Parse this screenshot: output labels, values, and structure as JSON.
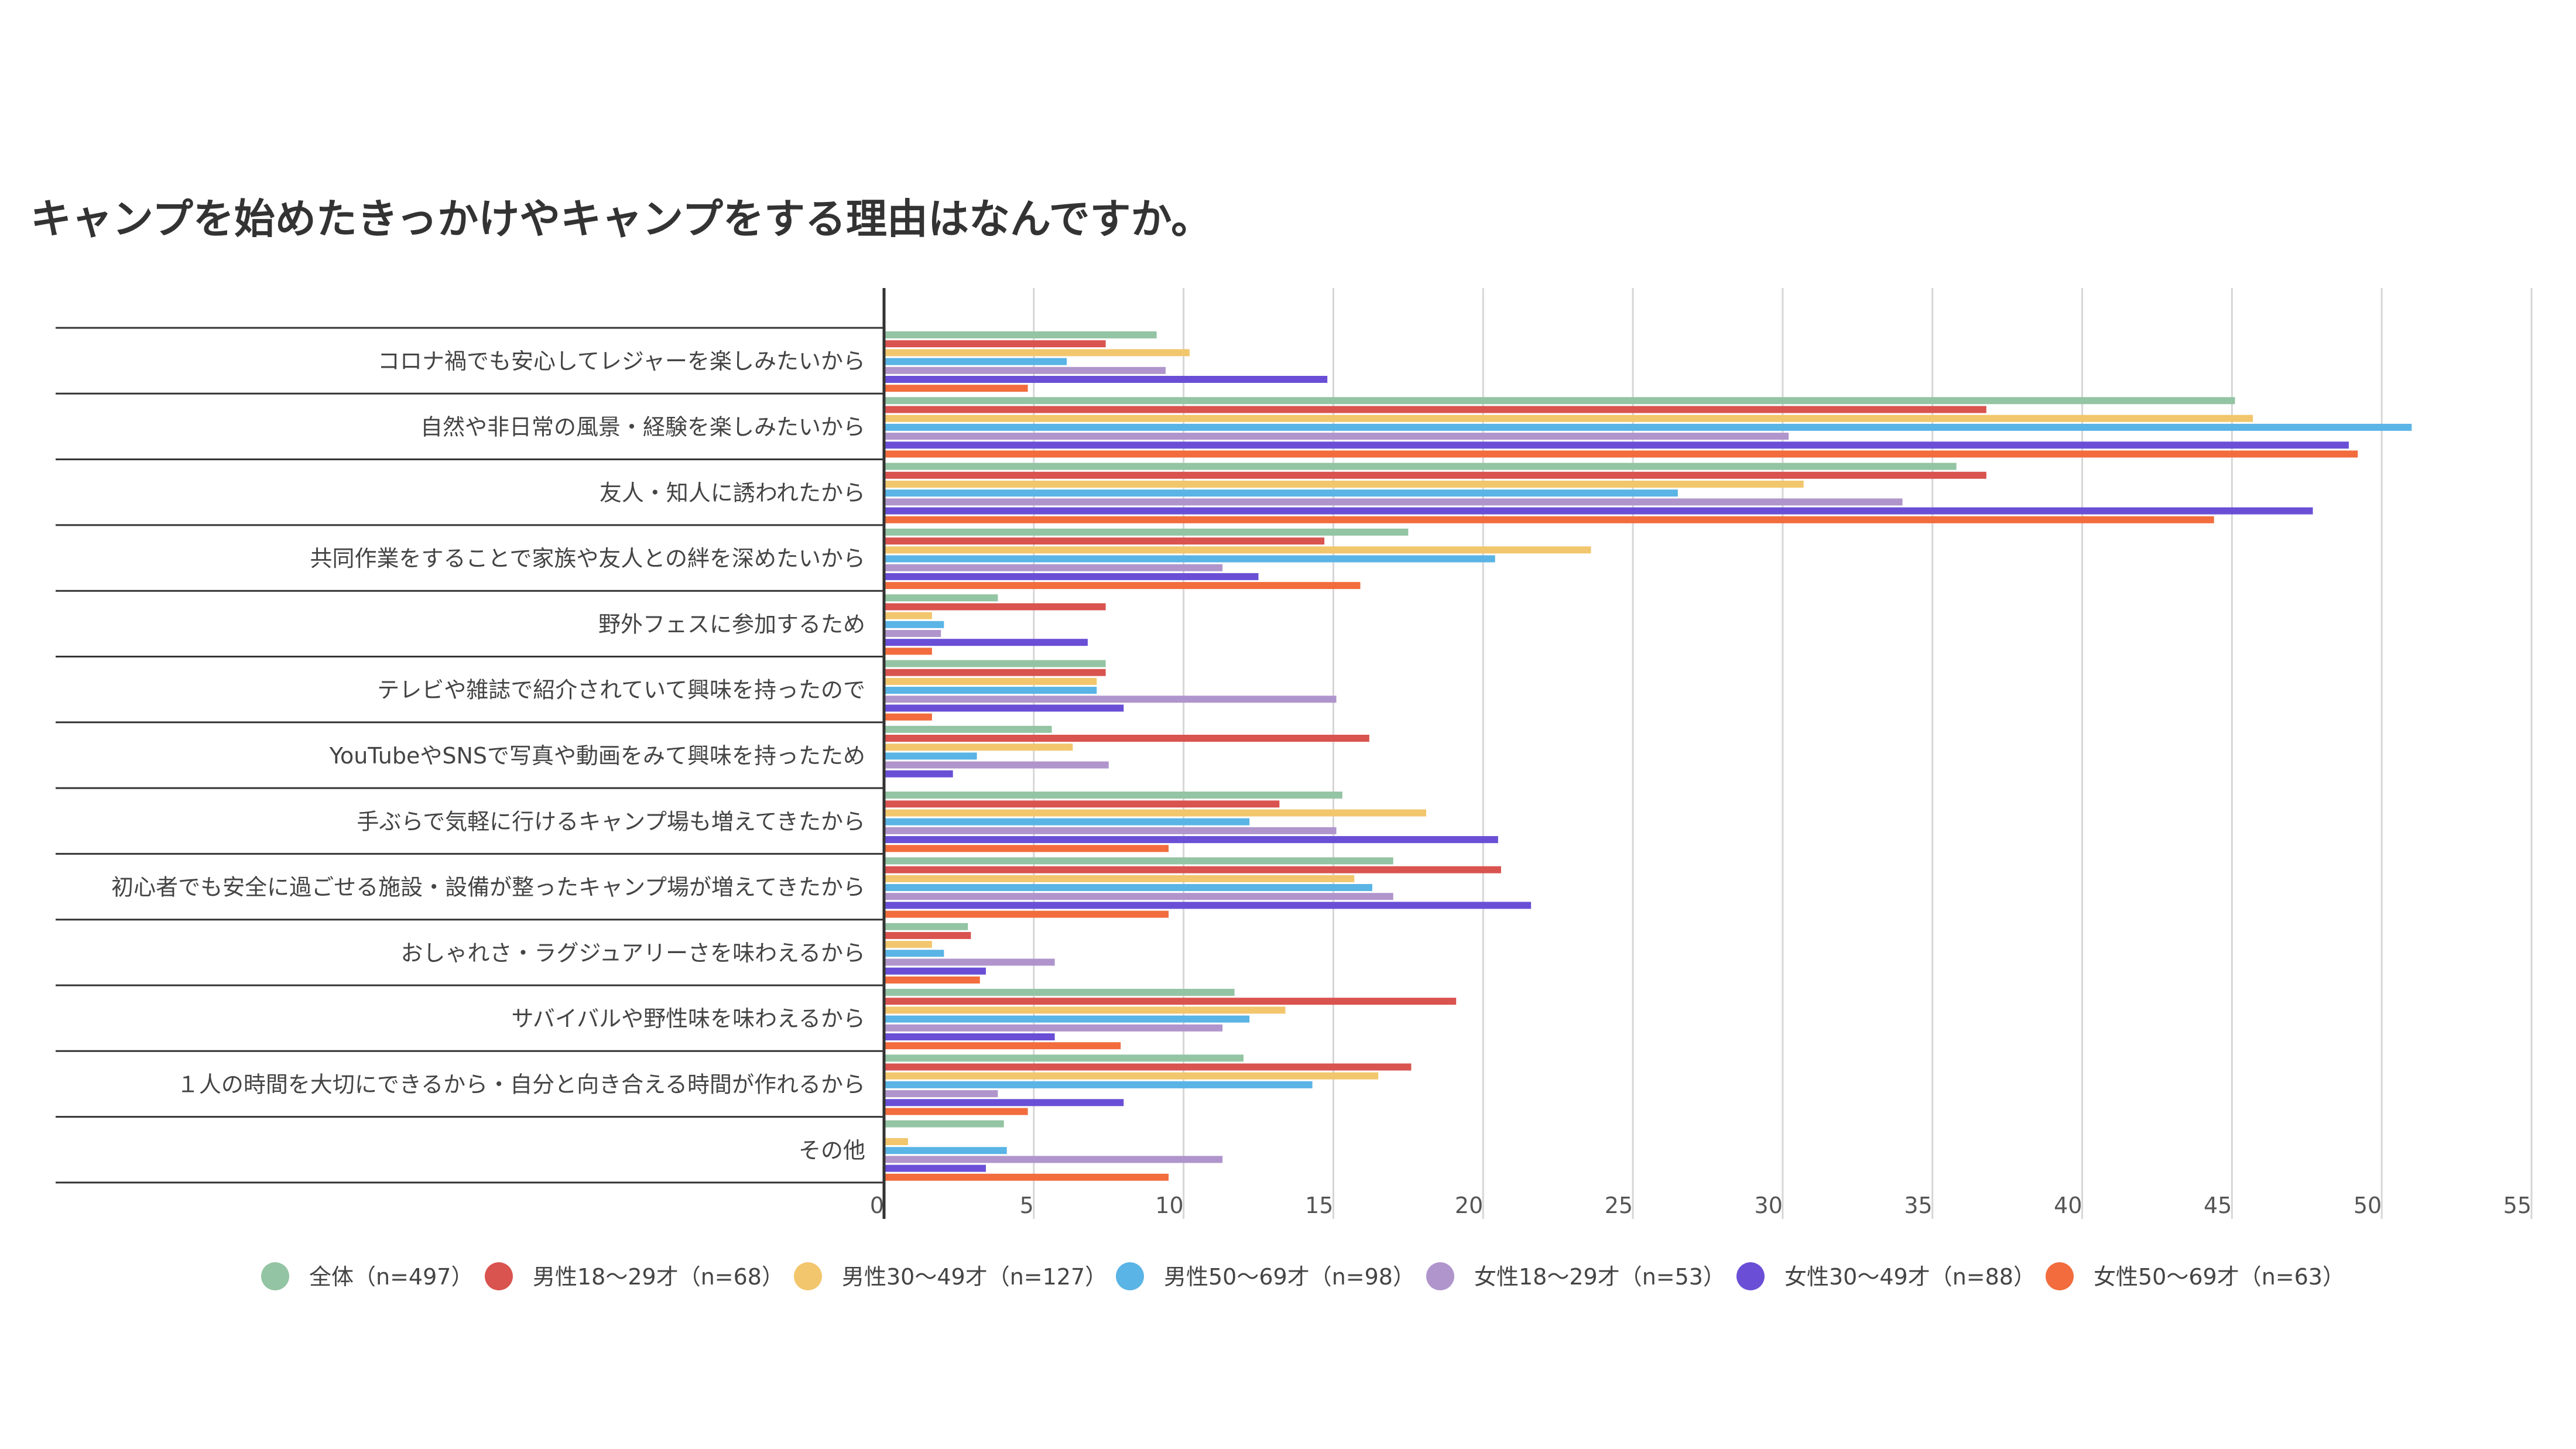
{
  "chart_data": {
    "type": "bar",
    "orientation": "horizontal",
    "title": "キャンプを始めたきっかけやキャンプをする理由はなんですか。",
    "categories": [
      "コロナ禍でも安心してレジャーを楽しみたいから",
      "自然や非日常の風景・経験を楽しみたいから",
      "友人・知人に誘われたから",
      "共同作業をすることで家族や友人との絆を深めたいから",
      "野外フェスに参加するため",
      "テレビや雑誌で紹介されていて興味を持ったので",
      "YouTubeやSNSで写真や動画をみて興味を持ったため",
      "手ぶらで気軽に行けるキャンプ場も増えてきたから",
      "初心者でも安全に過ごせる施設・設備が整ったキャンプ場が増えてきたから",
      "おしゃれさ・ラグジュアリーさを味わえるから",
      "サバイバルや野性味を味わえるから",
      "１人の時間を大切にできるから・自分と向き合える時間が作れるから",
      "その他"
    ],
    "xlim": [
      0,
      55
    ],
    "xticks": [
      "0",
      "5",
      "10",
      "15",
      "20",
      "25",
      "30",
      "35",
      "40",
      "45",
      "50",
      "55"
    ],
    "grid": true,
    "legend_position": "bottom",
    "series": [
      {
        "name": "全体（n=497）",
        "color": "#93c4a3",
        "values": [
          9.1,
          45.1,
          35.8,
          17.5,
          3.8,
          7.4,
          5.6,
          15.3,
          17.0,
          2.8,
          11.7,
          12.0,
          4.0
        ]
      },
      {
        "name": "男性18～29才（n=68）",
        "color": "#d9534f",
        "values": [
          7.4,
          36.8,
          36.8,
          14.7,
          7.4,
          7.4,
          16.2,
          13.2,
          20.6,
          2.9,
          19.1,
          17.6,
          0.0
        ]
      },
      {
        "name": "男性30～49才（n=127）",
        "color": "#f2c66d",
        "values": [
          10.2,
          45.7,
          30.7,
          23.6,
          1.6,
          7.1,
          6.3,
          18.1,
          15.7,
          1.6,
          13.4,
          16.5,
          0.8
        ]
      },
      {
        "name": "男性50～69才（n=98）",
        "color": "#5ab4e5",
        "values": [
          6.1,
          51.0,
          26.5,
          20.4,
          2.0,
          7.1,
          3.1,
          12.2,
          16.3,
          2.0,
          12.2,
          14.3,
          4.1
        ]
      },
      {
        "name": "女性18～29才（n=53）",
        "color": "#b095cc",
        "values": [
          9.4,
          30.2,
          34.0,
          11.3,
          1.9,
          15.1,
          7.5,
          15.1,
          17.0,
          5.7,
          11.3,
          3.8,
          11.3
        ]
      },
      {
        "name": "女性30～49才（n=88）",
        "color": "#6a4fd6",
        "values": [
          14.8,
          48.9,
          47.7,
          12.5,
          6.8,
          8.0,
          2.3,
          20.5,
          21.6,
          3.4,
          5.7,
          8.0,
          3.4
        ]
      },
      {
        "name": "女性50～69才（n=63）",
        "color": "#f26c3d",
        "values": [
          4.8,
          49.2,
          44.4,
          15.9,
          1.6,
          1.6,
          0.0,
          9.5,
          9.5,
          3.2,
          7.9,
          4.8,
          9.5
        ]
      }
    ]
  }
}
